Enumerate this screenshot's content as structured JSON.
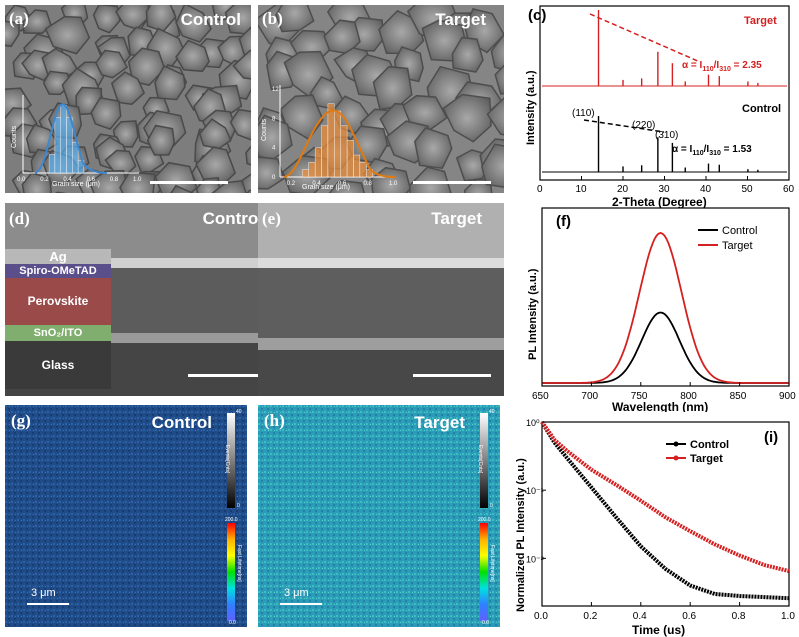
{
  "panels": {
    "a": {
      "label": "(a)",
      "title": "Control",
      "hist_xlabel": "Grain size (μm)",
      "hist_ylabel": "Counts",
      "hist_xticks": [
        "0.0",
        "0.2",
        "0.4",
        "0.6",
        "0.8",
        "1.0"
      ]
    },
    "b": {
      "label": "(b)",
      "title": "Target",
      "hist_xlabel": "Grain size (μm)",
      "hist_ylabel": "Counts",
      "hist_xticks": [
        "0.2",
        "0.4",
        "0.6",
        "0.8",
        "1.0"
      ],
      "hist_yticks": [
        "0",
        "4",
        "8",
        "12"
      ]
    },
    "c": {
      "label": "(c)"
    },
    "d": {
      "label": "(d)",
      "title": "Control",
      "layers": [
        "Ag",
        "Spiro-OMeTAD",
        "Perovskite",
        "SnO₂/ITO",
        "Glass"
      ]
    },
    "e": {
      "label": "(e)",
      "title": "Target"
    },
    "f": {
      "label": "(f)"
    },
    "g": {
      "label": "(g)",
      "title": "Control",
      "scalebar": "3 μm",
      "cbar_top_label": "Events[Cnts]",
      "cbar_top_max": "40",
      "cbar_top_min": "0",
      "cbar_bot_label": "Fast Lifetime[ns]",
      "cbar_bot_max": "200.0",
      "cbar_bot_min": "0.0"
    },
    "h": {
      "label": "(h)",
      "title": "Target",
      "scalebar": "3 μm",
      "cbar_top_label": "Events[Cnts]",
      "cbar_top_max": "40",
      "cbar_top_min": "0",
      "cbar_bot_label": "Fast Lifetime[ns]",
      "cbar_bot_max": "200.0",
      "cbar_bot_min": "0.0"
    },
    "i": {
      "label": "(i)"
    }
  },
  "colors": {
    "control": "#000000",
    "target": "#d42020",
    "hist_a": "#5aa9e6",
    "hist_b": "#e58c3a"
  },
  "chart_data": [
    {
      "id": "a-inset",
      "type": "bar",
      "xlabel": "Grain size (μm)",
      "ylabel": "Counts",
      "x": [
        0.25,
        0.3,
        0.35,
        0.4,
        0.45,
        0.5
      ],
      "values": [
        3,
        9,
        11,
        9,
        5,
        2
      ]
    },
    {
      "id": "b-inset",
      "type": "bar",
      "xlabel": "Grain size (μm)",
      "ylabel": "Counts",
      "x": [
        0.3,
        0.35,
        0.4,
        0.45,
        0.5,
        0.55,
        0.6,
        0.65,
        0.7,
        0.75,
        0.8
      ],
      "values": [
        1,
        2,
        4,
        7,
        10,
        9,
        7,
        5,
        3,
        2,
        1
      ],
      "ylim": [
        0,
        12
      ]
    },
    {
      "id": "c",
      "type": "line",
      "xlabel": "2-Theta (Degree)",
      "ylabel": "Intensity (a.u.)",
      "xlim": [
        0,
        60
      ],
      "xticks": [
        "0",
        "10",
        "20",
        "30",
        "40",
        "50",
        "60"
      ],
      "series": [
        {
          "name": "Target",
          "peaks": [
            [
              14.1,
              1.0
            ],
            [
              20.0,
              0.08
            ],
            [
              24.5,
              0.1
            ],
            [
              28.4,
              0.45
            ],
            [
              31.9,
              0.3
            ],
            [
              35.0,
              0.06
            ],
            [
              40.6,
              0.15
            ],
            [
              43.2,
              0.13
            ],
            [
              50.1,
              0.06
            ],
            [
              52.5,
              0.04
            ]
          ]
        },
        {
          "name": "Control",
          "peaks": [
            [
              14.1,
              1.0
            ],
            [
              20.0,
              0.1
            ],
            [
              24.5,
              0.12
            ],
            [
              28.4,
              0.62
            ],
            [
              31.9,
              0.52
            ],
            [
              35.0,
              0.08
            ],
            [
              40.6,
              0.15
            ],
            [
              43.2,
              0.13
            ],
            [
              50.1,
              0.05
            ],
            [
              52.5,
              0.04
            ]
          ]
        }
      ],
      "annotations": [
        "(110)",
        "(220)",
        "(310)",
        "α = I110/I310 = 2.35",
        "α = I110/I310 = 1.53"
      ]
    },
    {
      "id": "f",
      "type": "line",
      "xlabel": "Wavelength (nm)",
      "ylabel": "PL Intensity (a.u.)",
      "xlim": [
        650,
        900
      ],
      "xticks": [
        "650",
        "700",
        "750",
        "800",
        "850",
        "900"
      ],
      "legend": "top-right",
      "series": [
        {
          "name": "Control",
          "peak_nm": 770,
          "fwhm_nm": 45,
          "amplitude": 0.47
        },
        {
          "name": "Target",
          "peak_nm": 770,
          "fwhm_nm": 50,
          "amplitude": 1.0
        }
      ]
    },
    {
      "id": "i",
      "type": "line",
      "xlabel": "Time (us)",
      "ylabel": "Normalized PL Intensity (a.u.)",
      "xlim": [
        0,
        1.0
      ],
      "ylim": [
        0.002,
        1
      ],
      "yscale": "log",
      "xticks": [
        "0.0",
        "0.2",
        "0.4",
        "0.6",
        "0.8",
        "1.0"
      ],
      "yticks": [
        "10⁰",
        "10⁻¹",
        "10⁻²"
      ],
      "legend": "top-right",
      "series": [
        {
          "name": "Control",
          "x": [
            0,
            0.05,
            0.1,
            0.2,
            0.3,
            0.4,
            0.5,
            0.6,
            0.7,
            0.8,
            0.9,
            1.0
          ],
          "y": [
            1,
            0.5,
            0.3,
            0.11,
            0.04,
            0.015,
            0.007,
            0.004,
            0.003,
            0.0028,
            0.0027,
            0.0026
          ]
        },
        {
          "name": "Target",
          "x": [
            0,
            0.05,
            0.1,
            0.2,
            0.3,
            0.4,
            0.5,
            0.6,
            0.7,
            0.8,
            0.9,
            1.0
          ],
          "y": [
            1,
            0.55,
            0.38,
            0.2,
            0.12,
            0.07,
            0.04,
            0.025,
            0.016,
            0.011,
            0.008,
            0.0065
          ]
        }
      ]
    }
  ],
  "labels": {
    "c_target": "Target",
    "c_control": "Control",
    "c_110": "(110)",
    "c_220": "(220)",
    "c_310": "(310)",
    "c_alpha_t": "α = I",
    "c_alpha_t_val": " = 2.35",
    "c_alpha_c": "α = I",
    "c_alpha_c_val": " = 1.53",
    "sub110": "110",
    "sub310": "310",
    "c_xlabel": "2-Theta (Degree)",
    "c_ylabel": "Intensity (a.u.)",
    "f_xlabel": "Wavelength (nm)",
    "f_ylabel": "PL Intensity (a.u.)",
    "f_leg_control": "Control",
    "f_leg_target": "Target",
    "i_xlabel": "Time (us)",
    "i_ylabel": "Normalized PL Intensity (a.u.)",
    "i_leg_control": "Control",
    "i_leg_target": "Target"
  }
}
